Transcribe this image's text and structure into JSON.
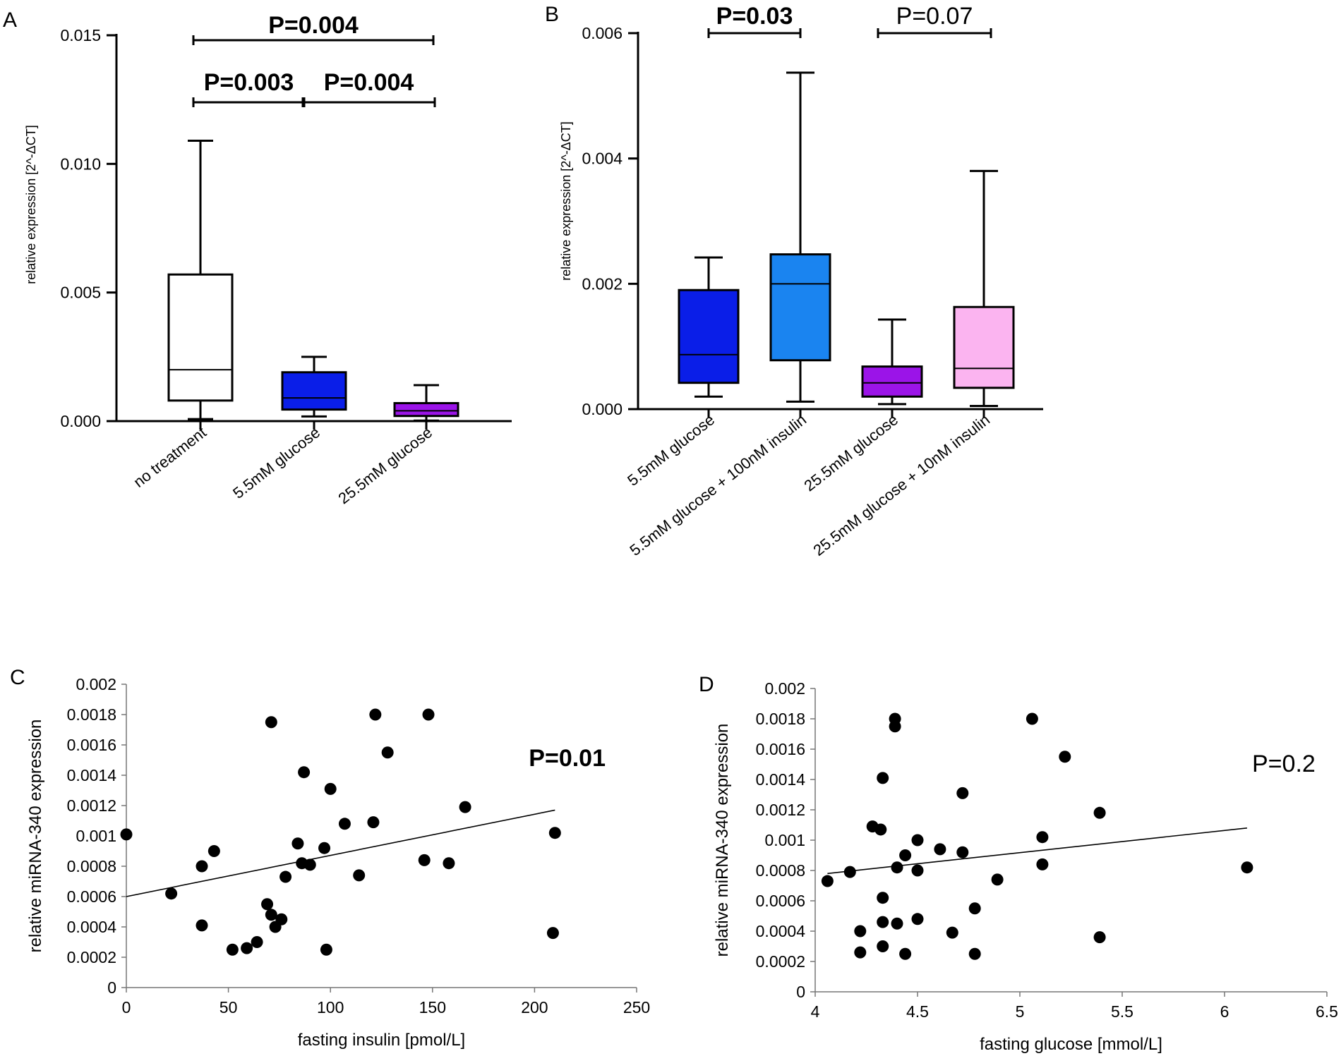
{
  "chart_data": [
    {
      "panel": "A",
      "type": "box",
      "ylabel": "relative expression [2^-ΔCT]",
      "ylim": [
        0,
        0.015
      ],
      "yticks": [
        {
          "value": 0,
          "label": "0.000"
        },
        {
          "value": 0.005,
          "label": "0.005"
        },
        {
          "value": 0.01,
          "label": "0.010"
        },
        {
          "value": 0.015,
          "label": "0.015"
        }
      ],
      "categories": [
        "no treatment",
        "5.5mM glucose",
        "25.5mM glucose"
      ],
      "boxes": [
        {
          "name": "no treatment",
          "min": 8e-05,
          "q1": 0.0008,
          "median": 0.002,
          "q3": 0.0057,
          "max": 0.0109,
          "color": "#ffffff"
        },
        {
          "name": "5.5mM glucose",
          "min": 0.00018,
          "q1": 0.00045,
          "median": 0.0009,
          "q3": 0.0019,
          "max": 0.0025,
          "color": "#0a1ee8"
        },
        {
          "name": "25.5mM glucose",
          "min": 2e-05,
          "q1": 0.0002,
          "median": 0.0004,
          "q3": 0.0007,
          "max": 0.0014,
          "color": "#9b14e8"
        }
      ],
      "comparisons": [
        {
          "from": 0,
          "to": 2,
          "label": "P=0.004",
          "bold": true
        },
        {
          "from": 0,
          "to": 1,
          "label": "P=0.003",
          "bold": true
        },
        {
          "from": 1,
          "to": 2,
          "label": "P=0.004",
          "bold": true
        }
      ]
    },
    {
      "panel": "B",
      "type": "box",
      "ylabel": "relative expression [2^-ΔCT]",
      "ylim": [
        0,
        0.006
      ],
      "yticks": [
        {
          "value": 0,
          "label": "0.000"
        },
        {
          "value": 0.002,
          "label": "0.002"
        },
        {
          "value": 0.004,
          "label": "0.004"
        },
        {
          "value": 0.006,
          "label": "0.006"
        }
      ],
      "categories": [
        "5.5mM glucose",
        "5.5mM glucose + 100nM insulin",
        "25.5mM glucose",
        "25.5mM glucose + 10nM insulin"
      ],
      "boxes": [
        {
          "name": "5.5mM glucose",
          "min": 0.0002,
          "q1": 0.00042,
          "median": 0.00087,
          "q3": 0.0019,
          "max": 0.00242,
          "color": "#0a1ee8"
        },
        {
          "name": "5.5mM glucose + 100nM insulin",
          "min": 0.00012,
          "q1": 0.00078,
          "median": 0.002,
          "q3": 0.00247,
          "max": 0.00537,
          "color": "#1a84f0"
        },
        {
          "name": "25.5mM glucose",
          "min": 8e-05,
          "q1": 0.0002,
          "median": 0.00042,
          "q3": 0.00068,
          "max": 0.00143,
          "color": "#9b14e8"
        },
        {
          "name": "25.5mM glucose + 10nM insulin",
          "min": 5e-05,
          "q1": 0.00034,
          "median": 0.00065,
          "q3": 0.00163,
          "max": 0.0038,
          "color": "#fbb4f0"
        }
      ],
      "comparisons": [
        {
          "from": 0,
          "to": 1,
          "label": "P=0.03",
          "bold": true
        },
        {
          "from": 2,
          "to": 3,
          "label": "P=0.07",
          "bold": false
        }
      ]
    },
    {
      "panel": "C",
      "type": "scatter",
      "xlabel": "fasting insulin [pmol/L]",
      "ylabel": "relative  miRNA-340  expression",
      "xlim": [
        0,
        250
      ],
      "ylim": [
        0,
        0.002
      ],
      "xticks": [
        {
          "value": 0,
          "label": "0"
        },
        {
          "value": 50,
          "label": "50"
        },
        {
          "value": 100,
          "label": "100"
        },
        {
          "value": 150,
          "label": "150"
        },
        {
          "value": 200,
          "label": "200"
        },
        {
          "value": 250,
          "label": "250"
        }
      ],
      "yticks": [
        {
          "value": 0,
          "label": "0"
        },
        {
          "value": 0.0002,
          "label": "0.0002"
        },
        {
          "value": 0.0004,
          "label": "0.0004"
        },
        {
          "value": 0.0006,
          "label": "0.0006"
        },
        {
          "value": 0.0008,
          "label": "0.0008"
        },
        {
          "value": 0.001,
          "label": "0.001"
        },
        {
          "value": 0.0012,
          "label": "0.0012"
        },
        {
          "value": 0.0014,
          "label": "0.0014"
        },
        {
          "value": 0.0016,
          "label": "0.0016"
        },
        {
          "value": 0.0018,
          "label": "0.0018"
        },
        {
          "value": 0.002,
          "label": "0.002"
        }
      ],
      "points": [
        [
          0,
          0.00101
        ],
        [
          22,
          0.00062
        ],
        [
          37,
          0.0008
        ],
        [
          37,
          0.00041
        ],
        [
          43,
          0.0009
        ],
        [
          52,
          0.00025
        ],
        [
          59,
          0.00026
        ],
        [
          64,
          0.0003
        ],
        [
          69,
          0.00055
        ],
        [
          71,
          0.00048
        ],
        [
          71,
          0.00175
        ],
        [
          73,
          0.0004
        ],
        [
          76,
          0.00045
        ],
        [
          78,
          0.00073
        ],
        [
          84,
          0.00095
        ],
        [
          86,
          0.00082
        ],
        [
          87,
          0.00142
        ],
        [
          90,
          0.00081
        ],
        [
          97,
          0.00092
        ],
        [
          98,
          0.00025
        ],
        [
          100,
          0.00131
        ],
        [
          107,
          0.00108
        ],
        [
          114,
          0.00074
        ],
        [
          121,
          0.00109
        ],
        [
          122,
          0.0018
        ],
        [
          128,
          0.00155
        ],
        [
          146,
          0.00084
        ],
        [
          148,
          0.0018
        ],
        [
          158,
          0.00082
        ],
        [
          166,
          0.00119
        ],
        [
          209,
          0.00036
        ],
        [
          210,
          0.00102
        ]
      ],
      "trendline": {
        "x": [
          0,
          210
        ],
        "y": [
          0.0006,
          0.00117
        ]
      },
      "annotation": {
        "label": "P=0.01",
        "bold": true
      }
    },
    {
      "panel": "D",
      "type": "scatter",
      "xlabel": "fasting glucose [mmol/L]",
      "ylabel": "relative  miRNA-340  expression",
      "xlim": [
        4,
        6.5
      ],
      "ylim": [
        0,
        0.002
      ],
      "xticks": [
        {
          "value": 4,
          "label": "4"
        },
        {
          "value": 4.5,
          "label": "4.5"
        },
        {
          "value": 5,
          "label": "5"
        },
        {
          "value": 5.5,
          "label": "5.5"
        },
        {
          "value": 6,
          "label": "6"
        },
        {
          "value": 6.5,
          "label": "6.5"
        }
      ],
      "yticks": [
        {
          "value": 0,
          "label": "0"
        },
        {
          "value": 0.0002,
          "label": "0.0002"
        },
        {
          "value": 0.0004,
          "label": "0.0004"
        },
        {
          "value": 0.0006,
          "label": "0.0006"
        },
        {
          "value": 0.0008,
          "label": "0.0008"
        },
        {
          "value": 0.001,
          "label": "0.001"
        },
        {
          "value": 0.0012,
          "label": "0.0012"
        },
        {
          "value": 0.0014,
          "label": "0.0014"
        },
        {
          "value": 0.0016,
          "label": "0.0016"
        },
        {
          "value": 0.0018,
          "label": "0.0018"
        },
        {
          "value": 0.002,
          "label": "0.002"
        }
      ],
      "points": [
        [
          4.06,
          0.00073
        ],
        [
          4.17,
          0.00079
        ],
        [
          4.22,
          0.0004
        ],
        [
          4.22,
          0.00026
        ],
        [
          4.28,
          0.00109
        ],
        [
          4.32,
          0.00107
        ],
        [
          4.33,
          0.00141
        ],
        [
          4.33,
          0.00062
        ],
        [
          4.33,
          0.00046
        ],
        [
          4.33,
          0.0003
        ],
        [
          4.39,
          0.0018
        ],
        [
          4.39,
          0.00175
        ],
        [
          4.4,
          0.00082
        ],
        [
          4.4,
          0.00045
        ],
        [
          4.44,
          0.0009
        ],
        [
          4.44,
          0.00025
        ],
        [
          4.5,
          0.001
        ],
        [
          4.5,
          0.0008
        ],
        [
          4.5,
          0.00048
        ],
        [
          4.61,
          0.00094
        ],
        [
          4.67,
          0.00039
        ],
        [
          4.72,
          0.00131
        ],
        [
          4.72,
          0.00092
        ],
        [
          4.78,
          0.00055
        ],
        [
          4.78,
          0.00025
        ],
        [
          4.89,
          0.00074
        ],
        [
          5.06,
          0.0018
        ],
        [
          5.11,
          0.00102
        ],
        [
          5.11,
          0.00084
        ],
        [
          5.22,
          0.00155
        ],
        [
          5.39,
          0.00118
        ],
        [
          5.39,
          0.00036
        ],
        [
          6.11,
          0.00082
        ]
      ],
      "trendline": {
        "x": [
          4.06,
          6.11
        ],
        "y": [
          0.00078,
          0.00108
        ]
      },
      "annotation": {
        "label": "P=0.2",
        "bold": false
      }
    }
  ]
}
